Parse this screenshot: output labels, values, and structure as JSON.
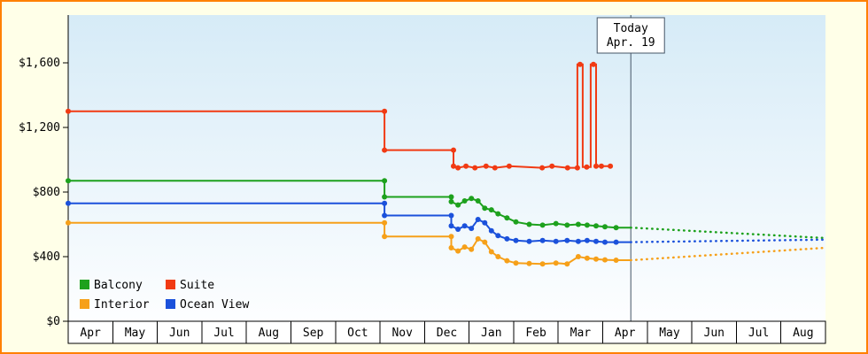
{
  "colors": {
    "border": "#ff8000",
    "page_bg": "#ffffe8",
    "plot_bg_top": "#d6ebf7",
    "plot_bg_bottom": "#fdfeff",
    "axis": "#000000",
    "today_line": "#445566",
    "month_box_bg": "#ffffff"
  },
  "chart_data": {
    "type": "line",
    "title": "",
    "xlabel": "",
    "ylabel": "",
    "ylim": [
      0,
      1896
    ],
    "grid": false,
    "legend_position": "bottom-left",
    "y_axis": {
      "ticks": [
        {
          "value": 0,
          "label": "$0"
        },
        {
          "value": 400,
          "label": "$400"
        },
        {
          "value": 800,
          "label": "$800"
        },
        {
          "value": 1200,
          "label": "$1,200"
        },
        {
          "value": 1600,
          "label": "$1,600"
        }
      ]
    },
    "x_axis": {
      "months": [
        "Apr",
        "May",
        "Jun",
        "Jul",
        "Aug",
        "Sep",
        "Oct",
        "Nov",
        "Dec",
        "Jan",
        "Feb",
        "Mar",
        "Apr",
        "May",
        "Jun",
        "Jul",
        "Aug"
      ]
    },
    "today_marker": {
      "x_month": 12.63,
      "line1": "Today",
      "line2": "Apr. 19"
    },
    "series": [
      {
        "name": "Balcony",
        "color": "#1da11d",
        "path": [
          [
            0,
            870
          ],
          [
            7.1,
            870
          ],
          [
            7.1,
            770
          ],
          [
            8.6,
            770
          ],
          [
            8.6,
            740
          ],
          [
            8.75,
            720
          ],
          [
            8.9,
            745
          ],
          [
            9.05,
            760
          ],
          [
            9.2,
            745
          ],
          [
            9.35,
            700
          ],
          [
            9.5,
            690
          ],
          [
            9.65,
            665
          ],
          [
            9.85,
            640
          ],
          [
            10.05,
            615
          ],
          [
            10.35,
            600
          ],
          [
            10.65,
            595
          ],
          [
            10.95,
            605
          ],
          [
            11.2,
            595
          ],
          [
            11.45,
            600
          ],
          [
            11.65,
            595
          ],
          [
            11.85,
            590
          ],
          [
            12.05,
            585
          ],
          [
            12.3,
            580
          ],
          [
            12.63,
            580
          ]
        ],
        "projection": [
          [
            12.63,
            580
          ],
          [
            17,
            515
          ]
        ]
      },
      {
        "name": "Suite",
        "color": "#f13a13",
        "path": [
          [
            0,
            1300
          ],
          [
            7.1,
            1300
          ],
          [
            7.1,
            1060
          ],
          [
            8.65,
            1060
          ],
          [
            8.65,
            960
          ],
          [
            8.75,
            950
          ],
          [
            8.93,
            960
          ],
          [
            9.13,
            950
          ],
          [
            9.38,
            960
          ],
          [
            9.58,
            950
          ],
          [
            9.9,
            960
          ],
          [
            10.64,
            950
          ],
          [
            10.86,
            960
          ],
          [
            11.21,
            950
          ],
          [
            11.43,
            950
          ],
          [
            11.43,
            1590
          ],
          [
            11.55,
            1590
          ],
          [
            11.55,
            955
          ],
          [
            11.73,
            955
          ],
          [
            11.73,
            1590
          ],
          [
            11.85,
            1590
          ],
          [
            11.85,
            960
          ],
          [
            12.17,
            960
          ]
        ],
        "markers": [
          [
            0,
            1300
          ],
          [
            7.1,
            1300
          ],
          [
            7.1,
            1060
          ],
          [
            8.65,
            1060
          ],
          [
            8.65,
            960
          ],
          [
            8.75,
            950
          ],
          [
            8.93,
            960
          ],
          [
            9.13,
            950
          ],
          [
            9.38,
            960
          ],
          [
            9.58,
            950
          ],
          [
            9.9,
            960
          ],
          [
            10.64,
            950
          ],
          [
            10.86,
            960
          ],
          [
            11.21,
            950
          ],
          [
            11.43,
            950
          ],
          [
            11.49,
            1590
          ],
          [
            11.64,
            955
          ],
          [
            11.79,
            1590
          ],
          [
            11.85,
            960
          ],
          [
            11.97,
            960
          ],
          [
            12.17,
            960
          ]
        ],
        "projection": null
      },
      {
        "name": "Interior",
        "color": "#f6a019",
        "path": [
          [
            0,
            610
          ],
          [
            7.1,
            610
          ],
          [
            7.1,
            525
          ],
          [
            8.6,
            525
          ],
          [
            8.6,
            455
          ],
          [
            8.75,
            435
          ],
          [
            8.9,
            460
          ],
          [
            9.05,
            445
          ],
          [
            9.2,
            510
          ],
          [
            9.35,
            490
          ],
          [
            9.5,
            430
          ],
          [
            9.65,
            400
          ],
          [
            9.85,
            375
          ],
          [
            10.05,
            360
          ],
          [
            10.35,
            358
          ],
          [
            10.65,
            355
          ],
          [
            10.95,
            360
          ],
          [
            11.2,
            355
          ],
          [
            11.45,
            400
          ],
          [
            11.65,
            390
          ],
          [
            11.85,
            385
          ],
          [
            12.05,
            380
          ],
          [
            12.3,
            378
          ],
          [
            12.63,
            378
          ]
        ],
        "projection": [
          [
            12.63,
            378
          ],
          [
            17,
            455
          ]
        ]
      },
      {
        "name": "Ocean View",
        "color": "#1b51db",
        "path": [
          [
            0,
            730
          ],
          [
            7.1,
            730
          ],
          [
            7.1,
            655
          ],
          [
            8.6,
            655
          ],
          [
            8.6,
            590
          ],
          [
            8.75,
            570
          ],
          [
            8.9,
            590
          ],
          [
            9.05,
            575
          ],
          [
            9.2,
            630
          ],
          [
            9.35,
            610
          ],
          [
            9.5,
            560
          ],
          [
            9.65,
            530
          ],
          [
            9.85,
            510
          ],
          [
            10.05,
            500
          ],
          [
            10.35,
            495
          ],
          [
            10.65,
            500
          ],
          [
            10.95,
            495
          ],
          [
            11.2,
            500
          ],
          [
            11.45,
            495
          ],
          [
            11.65,
            500
          ],
          [
            11.85,
            495
          ],
          [
            12.05,
            490
          ],
          [
            12.3,
            490
          ],
          [
            12.63,
            490
          ]
        ],
        "projection": [
          [
            12.63,
            490
          ],
          [
            17,
            505
          ]
        ]
      }
    ]
  }
}
